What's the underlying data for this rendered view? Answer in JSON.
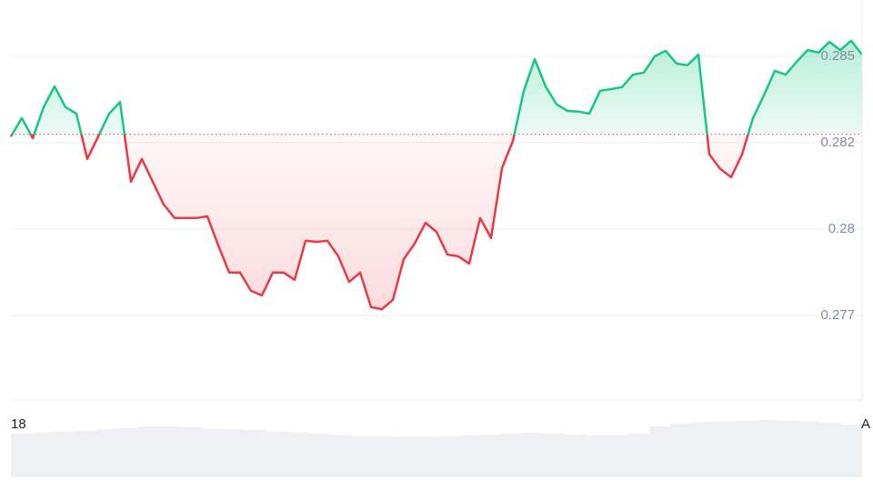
{
  "chart_data": {
    "type": "line",
    "series": [
      {
        "name": null,
        "color_up": "#16c784",
        "color_down": "#ea3943",
        "values": [
          0.28268,
          0.28321,
          0.28263,
          0.28353,
          0.28413,
          0.28353,
          0.28334,
          0.28203,
          0.28268,
          0.28334,
          0.28368,
          0.28137,
          0.28203,
          0.28137,
          0.28071,
          0.28032,
          0.28032,
          0.28032,
          0.28037,
          0.27953,
          0.27874,
          0.27874,
          0.27821,
          0.27808,
          0.27874,
          0.27874,
          0.27853,
          0.27966,
          0.27963,
          0.27966,
          0.27921,
          0.27847,
          0.27874,
          0.27774,
          0.27768,
          0.27795,
          0.27913,
          0.27958,
          0.28018,
          0.27992,
          0.27926,
          0.27921,
          0.279,
          0.28032,
          0.27974,
          0.28176,
          0.28255,
          0.284,
          0.28492,
          0.28413,
          0.28361,
          0.28342,
          0.2834,
          0.28334,
          0.284,
          0.28405,
          0.28411,
          0.28447,
          0.28453,
          0.285,
          0.28516,
          0.28479,
          0.28474,
          0.28505,
          0.28216,
          0.28174,
          0.2815,
          0.28216,
          0.28321,
          0.28387,
          0.28458,
          0.28447,
          0.28484,
          0.28518,
          0.28511,
          0.28542,
          0.28518,
          0.28545,
          0.28505
        ]
      }
    ],
    "baseline": 0.28274,
    "ylim": [
      0.27505,
      0.28663
    ],
    "yticks": [
      {
        "value": 0.2775,
        "label": "0.277"
      },
      0.28,
      {
        "value": 0.2825,
        "label": "0.282"
      },
      0.285
    ],
    "grid": true,
    "xtick_labels": [
      "18",
      "A"
    ],
    "volume": {
      "color": "#eef0f3",
      "ylim": [
        0,
        100
      ],
      "values": [
        60,
        62,
        63,
        64,
        66,
        68,
        70,
        70,
        69,
        67,
        66,
        65,
        63,
        62,
        60,
        58,
        57,
        57,
        56,
        56,
        57,
        58,
        59,
        60,
        61,
        60,
        59,
        58,
        58,
        60,
        70,
        74,
        76,
        77,
        78,
        79,
        78,
        77,
        75,
        73
      ]
    }
  }
}
